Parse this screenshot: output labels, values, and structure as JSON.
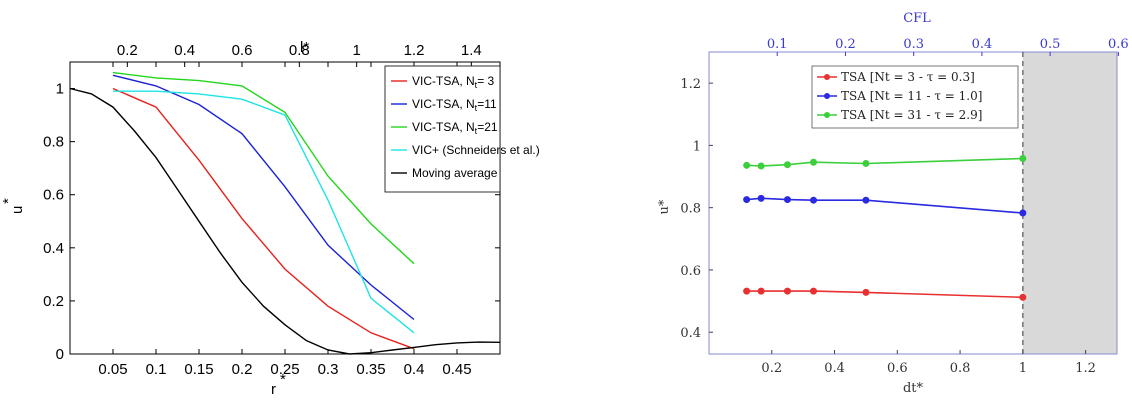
{
  "chart_data": [
    {
      "type": "line",
      "xlabel": "r",
      "xlabel_sup": "*",
      "ylabel": "u",
      "ylabel_sup": "*",
      "top_axis_label": "l*",
      "xlim": [
        0,
        0.5
      ],
      "ylim": [
        0,
        1.1
      ],
      "x_ticks": [
        "0.05",
        "0.1",
        "0.15",
        "0.2",
        "0.25",
        "0.3",
        "0.35",
        "0.4",
        "0.45"
      ],
      "y_ticks": [
        "0",
        "0.2",
        "0.4",
        "0.6",
        "0.8",
        "1"
      ],
      "top_ticks": [
        "0.2",
        "0.4",
        "0.6",
        "0.8",
        "1",
        "1.2",
        "1.4"
      ],
      "legend_placement": "top-right",
      "series": [
        {
          "name": "VIC-TSA, N",
          "name_sub": "t",
          "name_tail": "= 3",
          "color": "#e8201c",
          "x": [
            0.05,
            0.1,
            0.15,
            0.2,
            0.25,
            0.3,
            0.35,
            0.4
          ],
          "y": [
            1.0,
            0.93,
            0.73,
            0.51,
            0.32,
            0.18,
            0.08,
            0.02
          ]
        },
        {
          "name": "VIC-TSA, N",
          "name_sub": "t",
          "name_tail": "=11",
          "color": "#1a22d6",
          "x": [
            0.05,
            0.1,
            0.15,
            0.2,
            0.25,
            0.3,
            0.35,
            0.4
          ],
          "y": [
            1.05,
            1.01,
            0.94,
            0.83,
            0.63,
            0.41,
            0.26,
            0.13
          ]
        },
        {
          "name": "VIC-TSA, N",
          "name_sub": "t",
          "name_tail": "=21",
          "color": "#22d61c",
          "x": [
            0.05,
            0.1,
            0.15,
            0.2,
            0.25,
            0.3,
            0.35,
            0.4
          ],
          "y": [
            1.06,
            1.04,
            1.03,
            1.01,
            0.91,
            0.67,
            0.49,
            0.34
          ]
        },
        {
          "name": "VIC+ (Schneiders et al.)",
          "name_sub": "",
          "name_tail": "",
          "color": "#1ee4e4",
          "x": [
            0.05,
            0.1,
            0.15,
            0.2,
            0.25,
            0.3,
            0.35,
            0.4
          ],
          "y": [
            0.99,
            0.99,
            0.98,
            0.96,
            0.9,
            0.58,
            0.21,
            0.08
          ]
        },
        {
          "name": "Moving average",
          "name_sub": "",
          "name_tail": "",
          "color": "#000000",
          "x": [
            0.0,
            0.025,
            0.05,
            0.075,
            0.1,
            0.125,
            0.15,
            0.175,
            0.2,
            0.225,
            0.25,
            0.275,
            0.3,
            0.325,
            0.35,
            0.375,
            0.4,
            0.425,
            0.45,
            0.475,
            0.5
          ],
          "y": [
            1.0,
            0.98,
            0.93,
            0.84,
            0.74,
            0.62,
            0.5,
            0.38,
            0.27,
            0.18,
            0.11,
            0.05,
            0.015,
            0.0,
            0.005,
            0.015,
            0.025,
            0.035,
            0.042,
            0.045,
            0.044
          ]
        }
      ]
    },
    {
      "type": "line",
      "xlabel": "dt*",
      "ylabel": "u*",
      "top_axis_label": "CFL",
      "xlim": [
        0,
        1.3
      ],
      "ylim": [
        0.33,
        1.3
      ],
      "x_ticks": [
        "0.2",
        "0.4",
        "0.6",
        "0.8",
        "1",
        "1.2"
      ],
      "y_ticks": [
        "0.4",
        "0.6",
        "0.8",
        "1",
        "1.2"
      ],
      "top_ticks": [
        "0.1",
        "0.2",
        "0.3",
        "0.4",
        "0.5",
        "0.6"
      ],
      "shaded_region_x": [
        1.0,
        1.3
      ],
      "vertical_dashed_line_x": 1.0,
      "legend_placement": "top-center",
      "series": [
        {
          "name": "TSA [Nt = 3 -  τ = 0.3]",
          "color": "#e83030",
          "x": [
            0.12,
            0.166,
            0.25,
            0.333,
            0.5,
            1.0
          ],
          "y": [
            0.532,
            0.532,
            0.532,
            0.532,
            0.528,
            0.512
          ]
        },
        {
          "name": "TSA [Nt = 11 -  τ = 1.0]",
          "color": "#2a2ae0",
          "x": [
            0.12,
            0.166,
            0.25,
            0.333,
            0.5,
            1.0
          ],
          "y": [
            0.826,
            0.83,
            0.826,
            0.824,
            0.824,
            0.783
          ]
        },
        {
          "name": "TSA [Nt = 31 -  τ = 2.9]",
          "color": "#3ccf3c",
          "x": [
            0.12,
            0.166,
            0.25,
            0.333,
            0.5,
            1.0
          ],
          "y": [
            0.936,
            0.934,
            0.938,
            0.946,
            0.942,
            0.958
          ]
        }
      ]
    }
  ]
}
